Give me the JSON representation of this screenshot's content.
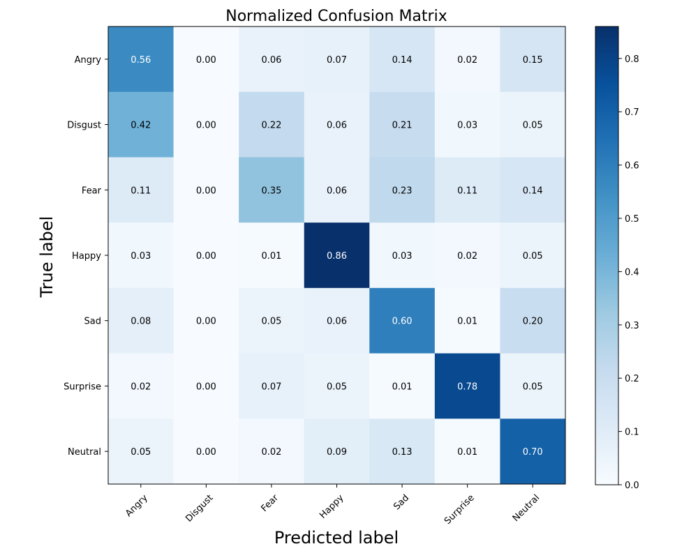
{
  "chart_data": {
    "type": "heatmap",
    "title": "Normalized Confusion Matrix",
    "xlabel": "Predicted label",
    "ylabel": "True label",
    "x_categories": [
      "Angry",
      "Disgust",
      "Fear",
      "Happy",
      "Sad",
      "Surprise",
      "Neutral"
    ],
    "y_categories": [
      "Angry",
      "Disgust",
      "Fear",
      "Happy",
      "Sad",
      "Surprise",
      "Neutral"
    ],
    "values": [
      [
        0.56,
        0.0,
        0.06,
        0.07,
        0.14,
        0.02,
        0.15
      ],
      [
        0.42,
        0.0,
        0.22,
        0.06,
        0.21,
        0.03,
        0.05
      ],
      [
        0.11,
        0.0,
        0.35,
        0.06,
        0.23,
        0.11,
        0.14
      ],
      [
        0.03,
        0.0,
        0.01,
        0.86,
        0.03,
        0.02,
        0.05
      ],
      [
        0.08,
        0.0,
        0.05,
        0.06,
        0.6,
        0.01,
        0.2
      ],
      [
        0.02,
        0.0,
        0.07,
        0.05,
        0.01,
        0.78,
        0.05
      ],
      [
        0.05,
        0.0,
        0.02,
        0.09,
        0.13,
        0.01,
        0.7
      ]
    ],
    "cell_labels": [
      [
        "0.56",
        "0.00",
        "0.06",
        "0.07",
        "0.14",
        "0.02",
        "0.15"
      ],
      [
        "0.42",
        "0.00",
        "0.22",
        "0.06",
        "0.21",
        "0.03",
        "0.05"
      ],
      [
        "0.11",
        "0.00",
        "0.35",
        "0.06",
        "0.23",
        "0.11",
        "0.14"
      ],
      [
        "0.03",
        "0.00",
        "0.01",
        "0.86",
        "0.03",
        "0.02",
        "0.05"
      ],
      [
        "0.08",
        "0.00",
        "0.05",
        "0.06",
        "0.60",
        "0.01",
        "0.20"
      ],
      [
        "0.02",
        "0.00",
        "0.07",
        "0.05",
        "0.01",
        "0.78",
        "0.05"
      ],
      [
        "0.05",
        "0.00",
        "0.02",
        "0.09",
        "0.13",
        "0.01",
        "0.70"
      ]
    ],
    "colormap": "Blues",
    "colormap_stops": [
      "#f7fbff",
      "#deebf7",
      "#c6dbef",
      "#9ecae1",
      "#6baed6",
      "#4292c6",
      "#2171b5",
      "#08519c",
      "#08306b"
    ],
    "color_range": [
      0.0,
      0.86
    ],
    "colorbar": {
      "ticks": [
        0.0,
        0.1,
        0.2,
        0.3,
        0.4,
        0.5,
        0.6,
        0.7,
        0.8
      ],
      "tick_labels": [
        "0.0",
        "0.1",
        "0.2",
        "0.3",
        "0.4",
        "0.5",
        "0.6",
        "0.7",
        "0.8"
      ]
    },
    "text_color_light": "#ffffff",
    "text_color_dark": "#000000",
    "text_threshold": 0.43,
    "grid": false
  }
}
